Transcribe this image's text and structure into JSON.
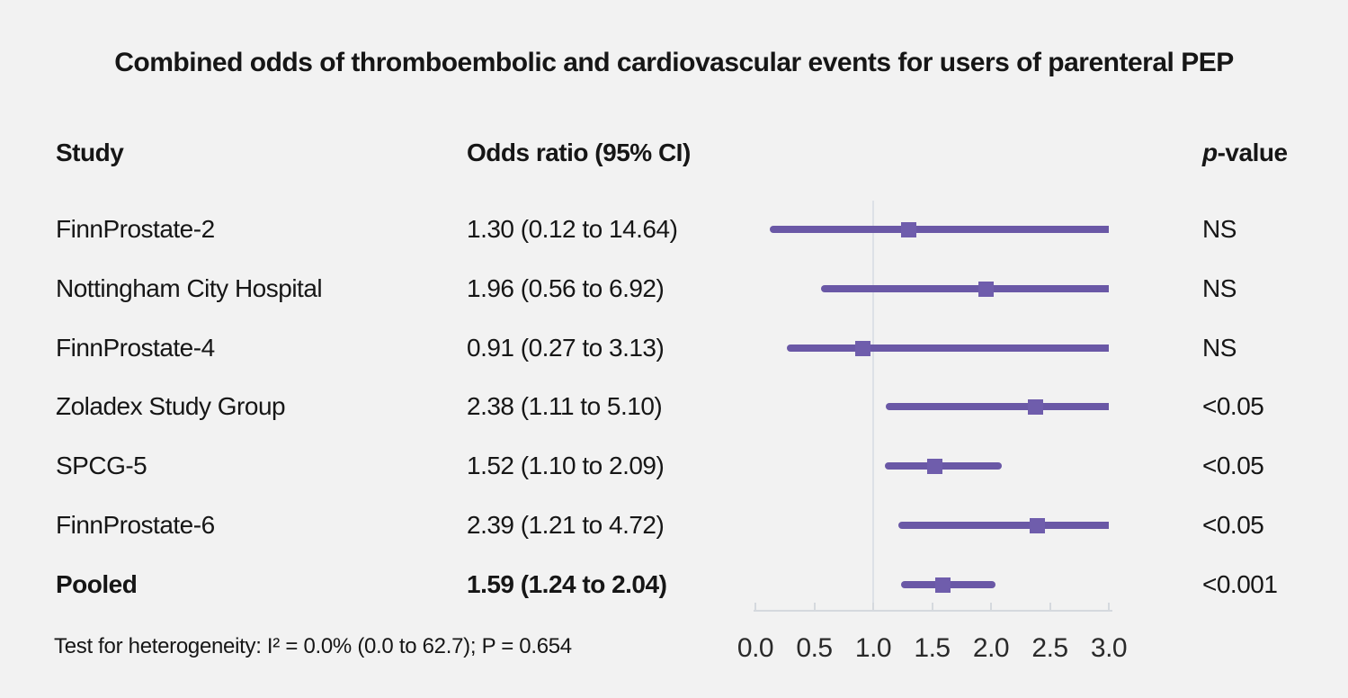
{
  "chart_data": {
    "type": "forest",
    "title": "Combined odds of thromboembolic and cardiovascular events for users of parenteral PEP",
    "columns": {
      "study": "Study",
      "odds_ratio": "Odds ratio (95% CI)",
      "p_italic": "p",
      "p_rest": "-value"
    },
    "rows": [
      {
        "study": "FinnProstate-2",
        "or": 1.3,
        "ci_low": 0.12,
        "ci_high": 14.64,
        "or_label": "1.30 (0.12 to 14.64)",
        "p": "NS",
        "bold": false
      },
      {
        "study": "Nottingham City Hospital",
        "or": 1.96,
        "ci_low": 0.56,
        "ci_high": 6.92,
        "or_label": "1.96 (0.56 to 6.92)",
        "p": "NS",
        "bold": false
      },
      {
        "study": "FinnProstate-4",
        "or": 0.91,
        "ci_low": 0.27,
        "ci_high": 3.13,
        "or_label": "0.91 (0.27 to 3.13)",
        "p": "NS",
        "bold": false
      },
      {
        "study": "Zoladex Study Group",
        "or": 2.38,
        "ci_low": 1.11,
        "ci_high": 5.1,
        "or_label": "2.38 (1.11 to 5.10)",
        "p": "<0.05",
        "bold": false
      },
      {
        "study": "SPCG-5",
        "or": 1.52,
        "ci_low": 1.1,
        "ci_high": 2.09,
        "or_label": "1.52 (1.10 to 2.09)",
        "p": "<0.05",
        "bold": false
      },
      {
        "study": "FinnProstate-6",
        "or": 2.39,
        "ci_low": 1.21,
        "ci_high": 4.72,
        "or_label": "2.39 (1.21 to 4.72)",
        "p": "<0.05",
        "bold": false
      },
      {
        "study": "Pooled",
        "or": 1.59,
        "ci_low": 1.24,
        "ci_high": 2.04,
        "or_label": "1.59 (1.24 to 2.04)",
        "p": "<0.001",
        "bold": true
      }
    ],
    "axis": {
      "min": 0,
      "max": 3,
      "tick_values": [
        0,
        0.5,
        1.0,
        1.5,
        2.0,
        2.5,
        3.0
      ],
      "ticks": [
        "0.0",
        "0.5",
        "1.0",
        "1.5",
        "2.0",
        "2.5",
        "3.0"
      ],
      "reference_value": 1.0
    },
    "footnote": "Test for heterogeneity: I² = 0.0% (0.0 to 62.7); P = 0.654",
    "colors": {
      "background": "#f2f2f2",
      "text": "#161616",
      "ci_line": "#6a58a6",
      "marker": "#6f5dac",
      "reference_line": "#dde1e7",
      "axis": "#d5d9de"
    }
  }
}
